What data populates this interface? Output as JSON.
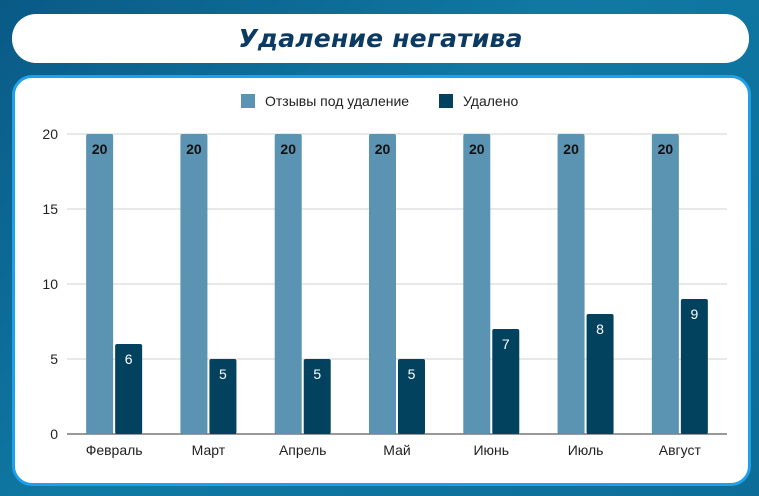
{
  "title": "Удаление негатива",
  "colors": {
    "series1": "#5b93b2",
    "series2": "#03425e"
  },
  "chart_data": {
    "type": "bar",
    "categories": [
      "Февраль",
      "Март",
      "Апрель",
      "Май",
      "Июнь",
      "Июль",
      "Август"
    ],
    "series": [
      {
        "name": "Отзывы под удаление",
        "values": [
          20,
          20,
          20,
          20,
          20,
          20,
          20
        ]
      },
      {
        "name": "Удалено",
        "values": [
          6,
          5,
          5,
          5,
          7,
          8,
          9
        ]
      }
    ],
    "ylim": [
      0,
      20
    ],
    "yticks": [
      0,
      5,
      10,
      15,
      20
    ],
    "grid": true,
    "legend": "top-center"
  }
}
